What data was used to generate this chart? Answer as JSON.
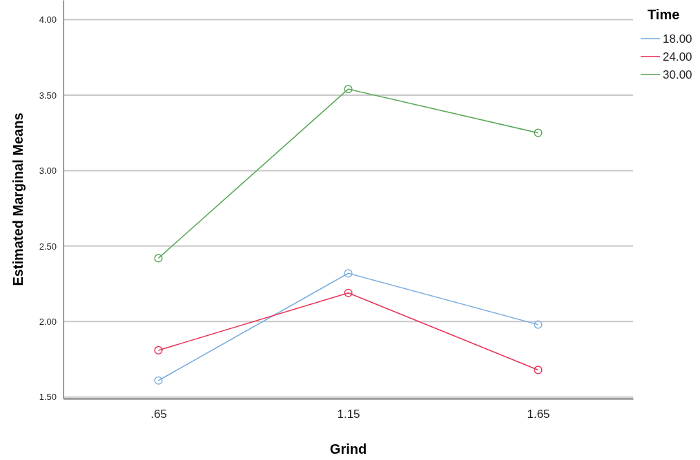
{
  "chart_data": {
    "type": "line",
    "xlabel": "Grind",
    "ylabel": "Estimated Marginal Means",
    "legend_title": "Time",
    "categories": [
      ".65",
      "1.15",
      "1.65"
    ],
    "series": [
      {
        "name": "18.00",
        "color": "#7aaee0",
        "values": [
          1.61,
          2.32,
          1.98
        ]
      },
      {
        "name": "24.00",
        "color": "#e8355a",
        "values": [
          1.81,
          2.19,
          1.68
        ]
      },
      {
        "name": "30.00",
        "color": "#5aa85a",
        "values": [
          2.42,
          3.54,
          3.25
        ]
      }
    ],
    "ylim": [
      1.49,
      4.13
    ],
    "yticks": [
      {
        "value": 1.5,
        "label": "1.50"
      },
      {
        "value": 2,
        "label": "2.00"
      },
      {
        "value": 2.5,
        "label": "2.50"
      },
      {
        "value": 3,
        "label": "3.00"
      },
      {
        "value": 3.5,
        "label": "3.50"
      },
      {
        "value": 4,
        "label": "4.00"
      }
    ],
    "grid": "y",
    "legend": "top right",
    "marker": "circle",
    "line_style": "solid"
  }
}
